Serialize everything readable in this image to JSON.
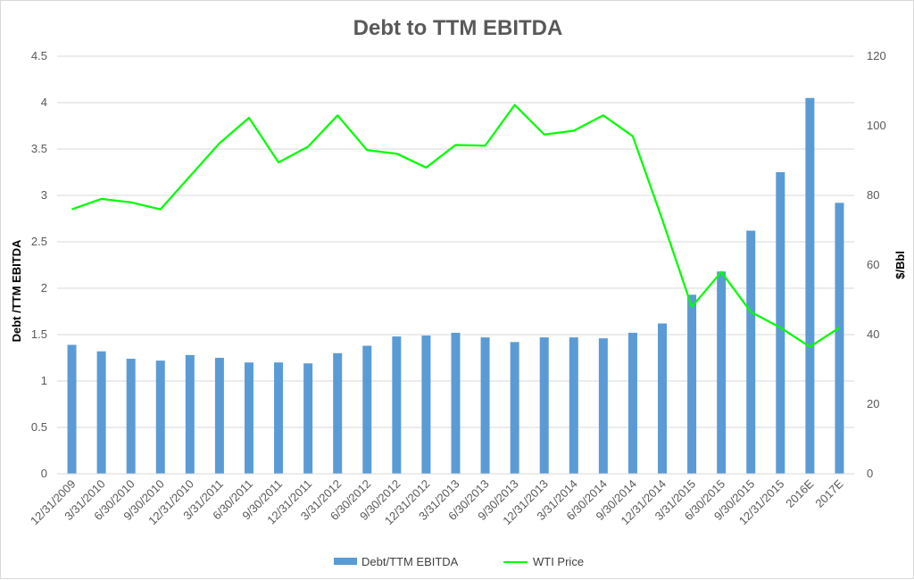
{
  "chart_data": {
    "type": "bar",
    "title": "Debt to TTM EBITDA",
    "categories": [
      "12/31/2009",
      "3/31/2010",
      "6/30/2010",
      "9/30/2010",
      "12/31/2010",
      "3/31/2011",
      "6/30/2011",
      "9/30/2011",
      "12/31/2011",
      "3/31/2012",
      "6/30/2012",
      "9/30/2012",
      "12/31/2012",
      "3/31/2013",
      "6/30/2013",
      "9/30/2013",
      "12/31/2013",
      "3/31/2014",
      "6/30/2014",
      "9/30/2014",
      "12/31/2014",
      "3/31/2015",
      "6/30/2015",
      "9/30/2015",
      "12/31/2015",
      "2016E",
      "2017E"
    ],
    "series": [
      {
        "name": "Debt/TTM EBITDA",
        "type": "bar",
        "axis": "left",
        "color": "#5b9bd5",
        "values": [
          1.39,
          1.32,
          1.24,
          1.22,
          1.28,
          1.25,
          1.2,
          1.2,
          1.19,
          1.3,
          1.38,
          1.48,
          1.49,
          1.52,
          1.47,
          1.42,
          1.47,
          1.47,
          1.46,
          1.52,
          1.62,
          1.93,
          2.18,
          2.62,
          3.25,
          4.05,
          2.92
        ]
      },
      {
        "name": "WTI Price",
        "type": "line",
        "axis": "right",
        "color": "#00ff00",
        "values": [
          76.0,
          79.0,
          78.0,
          76.0,
          85.5,
          95.0,
          102.3,
          89.5,
          94.0,
          103.0,
          93.0,
          92.0,
          88.0,
          94.5,
          94.3,
          106.0,
          97.5,
          98.6,
          103.0,
          97.0,
          73.0,
          48.0,
          58.0,
          46.5,
          42.0,
          36.5,
          42.0
        ]
      }
    ],
    "ylabel": "Debt /TTM EBITDA",
    "y2label": "$/Bbl",
    "ylim": [
      0,
      4.5
    ],
    "y2lim": [
      0,
      120
    ],
    "yticks": [
      "0",
      "0.5",
      "1",
      "1.5",
      "2",
      "2.5",
      "3",
      "3.5",
      "4",
      "4.5"
    ],
    "y2ticks": [
      "0",
      "20",
      "40",
      "60",
      "80",
      "100",
      "120"
    ],
    "grid": true,
    "legend_position": "bottom"
  }
}
